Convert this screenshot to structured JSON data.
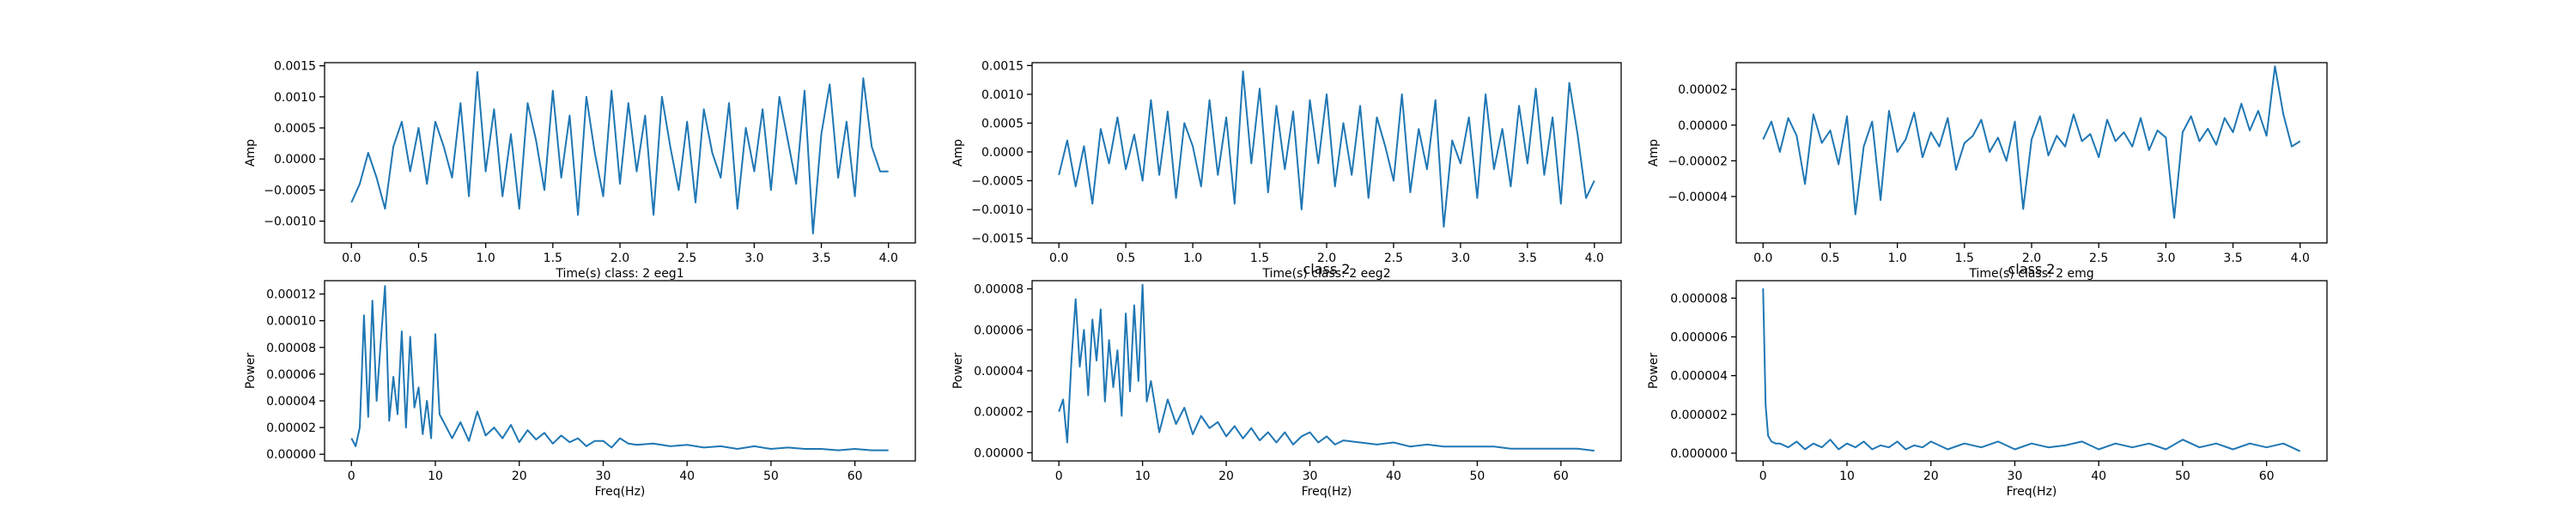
{
  "chart_data": [
    {
      "type": "line",
      "title": "",
      "xlabel": "Time(s) class: 2 eeg1",
      "ylabel": "Amp",
      "xlim": [
        -0.2,
        4.2
      ],
      "ylim": [
        -0.00135,
        0.00155
      ],
      "xticks": [
        0.0,
        0.5,
        1.0,
        1.5,
        2.0,
        2.5,
        3.0,
        3.5,
        4.0
      ],
      "xtick_labels": [
        "0.0",
        "0.5",
        "1.0",
        "1.5",
        "2.0",
        "2.5",
        "3.0",
        "3.5",
        "4.0"
      ],
      "yticks": [
        -0.001,
        -0.0005,
        0.0,
        0.0005,
        0.001,
        0.0015
      ],
      "ytick_labels": [
        "−0.0010",
        "−0.0005",
        "0.0000",
        "0.0005",
        "0.0010",
        "0.0015"
      ],
      "grid": false,
      "color": "#1f77b4",
      "series": [
        {
          "x": [
            0.0,
            0.0625,
            0.125,
            0.1875,
            0.25,
            0.3125,
            0.375,
            0.4375,
            0.5,
            0.5625,
            0.625,
            0.6875,
            0.75,
            0.8125,
            0.875,
            0.9375,
            1.0,
            1.0625,
            1.125,
            1.1875,
            1.25,
            1.3125,
            1.375,
            1.4375,
            1.5,
            1.5625,
            1.625,
            1.6875,
            1.75,
            1.8125,
            1.875,
            1.9375,
            2.0,
            2.0625,
            2.125,
            2.1875,
            2.25,
            2.3125,
            2.375,
            2.4375,
            2.5,
            2.5625,
            2.625,
            2.6875,
            2.75,
            2.8125,
            2.875,
            2.9375,
            3.0,
            3.0625,
            3.125,
            3.1875,
            3.25,
            3.3125,
            3.375,
            3.4375,
            3.5,
            3.5625,
            3.625,
            3.6875,
            3.75,
            3.8125,
            3.875,
            3.9375,
            4.0
          ],
          "y": [
            -0.0007,
            -0.0004,
            0.0001,
            -0.0003,
            -0.0008,
            0.0002,
            0.0006,
            -0.0002,
            0.0005,
            -0.0004,
            0.0006,
            0.0002,
            -0.0003,
            0.0009,
            -0.0006,
            0.0014,
            -0.0002,
            0.0008,
            -0.0006,
            0.0004,
            -0.0008,
            0.0009,
            0.0003,
            -0.0005,
            0.0011,
            -0.0003,
            0.0007,
            -0.0009,
            0.001,
            0.0001,
            -0.0006,
            0.0011,
            -0.0004,
            0.0009,
            -0.0002,
            0.0007,
            -0.0009,
            0.001,
            0.0002,
            -0.0005,
            0.0006,
            -0.0007,
            0.0008,
            0.0001,
            -0.0003,
            0.0009,
            -0.0008,
            0.0005,
            -0.0002,
            0.0008,
            -0.0005,
            0.001,
            0.0003,
            -0.0004,
            0.0011,
            -0.0012,
            0.0004,
            0.0012,
            -0.0003,
            0.0006,
            -0.0006,
            0.0013,
            0.0002,
            -0.0002,
            -0.0002
          ]
        }
      ]
    },
    {
      "type": "line",
      "title": "class 2",
      "xlabel": "Time(s) class: 2 eeg2",
      "ylabel": "Amp",
      "xlim": [
        -0.2,
        4.2
      ],
      "ylim": [
        -0.00158,
        0.00155
      ],
      "xticks": [
        0.0,
        0.5,
        1.0,
        1.5,
        2.0,
        2.5,
        3.0,
        3.5,
        4.0
      ],
      "xtick_labels": [
        "0.0",
        "0.5",
        "1.0",
        "1.5",
        "2.0",
        "2.5",
        "3.0",
        "3.5",
        "4.0"
      ],
      "yticks": [
        -0.0015,
        -0.001,
        -0.0005,
        0.0,
        0.0005,
        0.001,
        0.0015
      ],
      "ytick_labels": [
        "−0.0015",
        "−0.0010",
        "−0.0005",
        "0.0000",
        "0.0005",
        "0.0010",
        "0.0015"
      ],
      "grid": false,
      "color": "#1f77b4",
      "series": [
        {
          "x": [
            0.0,
            0.0625,
            0.125,
            0.1875,
            0.25,
            0.3125,
            0.375,
            0.4375,
            0.5,
            0.5625,
            0.625,
            0.6875,
            0.75,
            0.8125,
            0.875,
            0.9375,
            1.0,
            1.0625,
            1.125,
            1.1875,
            1.25,
            1.3125,
            1.375,
            1.4375,
            1.5,
            1.5625,
            1.625,
            1.6875,
            1.75,
            1.8125,
            1.875,
            1.9375,
            2.0,
            2.0625,
            2.125,
            2.1875,
            2.25,
            2.3125,
            2.375,
            2.4375,
            2.5,
            2.5625,
            2.625,
            2.6875,
            2.75,
            2.8125,
            2.875,
            2.9375,
            3.0,
            3.0625,
            3.125,
            3.1875,
            3.25,
            3.3125,
            3.375,
            3.4375,
            3.5,
            3.5625,
            3.625,
            3.6875,
            3.75,
            3.8125,
            3.875,
            3.9375,
            4.0
          ],
          "y": [
            -0.0004,
            0.0002,
            -0.0006,
            0.0001,
            -0.0009,
            0.0004,
            -0.0002,
            0.0006,
            -0.0003,
            0.0003,
            -0.0005,
            0.0009,
            -0.0004,
            0.0007,
            -0.0008,
            0.0005,
            0.0001,
            -0.0006,
            0.0009,
            -0.0004,
            0.0006,
            -0.0009,
            0.0014,
            -0.0002,
            0.0011,
            -0.0007,
            0.0008,
            -0.0003,
            0.0007,
            -0.001,
            0.0009,
            -0.0002,
            0.001,
            -0.0006,
            0.0005,
            -0.0004,
            0.0008,
            -0.0008,
            0.0006,
            0.0001,
            -0.0005,
            0.001,
            -0.0007,
            0.0004,
            -0.0003,
            0.0009,
            -0.0013,
            0.0002,
            -0.0002,
            0.0006,
            -0.0008,
            0.001,
            -0.0003,
            0.0004,
            -0.0006,
            0.0008,
            -0.0002,
            0.0011,
            -0.0004,
            0.0006,
            -0.0009,
            0.0012,
            0.0003,
            -0.0008,
            -0.0005
          ]
        }
      ]
    },
    {
      "type": "line",
      "title": "class 2",
      "xlabel": "Time(s) class: 2 emg",
      "ylabel": "Amp",
      "xlim": [
        -0.2,
        4.2
      ],
      "ylim": [
        -6.6e-05,
        3.5e-05
      ],
      "xticks": [
        0.0,
        0.5,
        1.0,
        1.5,
        2.0,
        2.5,
        3.0,
        3.5,
        4.0
      ],
      "xtick_labels": [
        "0.0",
        "0.5",
        "1.0",
        "1.5",
        "2.0",
        "2.5",
        "3.0",
        "3.5",
        "4.0"
      ],
      "yticks": [
        -4e-05,
        -2e-05,
        0.0,
        2e-05
      ],
      "ytick_labels": [
        "−0.00004",
        "−0.00002",
        "0.00000",
        "0.00002"
      ],
      "grid": false,
      "color": "#1f77b4",
      "series": [
        {
          "x": [
            0.0,
            0.0625,
            0.125,
            0.1875,
            0.25,
            0.3125,
            0.375,
            0.4375,
            0.5,
            0.5625,
            0.625,
            0.6875,
            0.75,
            0.8125,
            0.875,
            0.9375,
            1.0,
            1.0625,
            1.125,
            1.1875,
            1.25,
            1.3125,
            1.375,
            1.4375,
            1.5,
            1.5625,
            1.625,
            1.6875,
            1.75,
            1.8125,
            1.875,
            1.9375,
            2.0,
            2.0625,
            2.125,
            2.1875,
            2.25,
            2.3125,
            2.375,
            2.4375,
            2.5,
            2.5625,
            2.625,
            2.6875,
            2.75,
            2.8125,
            2.875,
            2.9375,
            3.0,
            3.0625,
            3.125,
            3.1875,
            3.25,
            3.3125,
            3.375,
            3.4375,
            3.5,
            3.5625,
            3.625,
            3.6875,
            3.75,
            3.8125,
            3.875,
            3.9375,
            4.0
          ],
          "y": [
            -8e-06,
            2e-06,
            -1.5e-05,
            4e-06,
            -6e-06,
            -3.3e-05,
            6e-06,
            -1e-05,
            -3e-06,
            -2.2e-05,
            5e-06,
            -5e-05,
            -1.2e-05,
            2e-06,
            -4.2e-05,
            8e-06,
            -1.5e-05,
            -8e-06,
            7e-06,
            -1.8e-05,
            -4e-06,
            -1.2e-05,
            4e-06,
            -2.5e-05,
            -1e-05,
            -6e-06,
            3e-06,
            -1.5e-05,
            -7e-06,
            -2e-05,
            2e-06,
            -4.7e-05,
            -8e-06,
            5e-06,
            -1.7e-05,
            -6e-06,
            -1.2e-05,
            6e-06,
            -9e-06,
            -5e-06,
            -1.8e-05,
            3e-06,
            -9e-06,
            -4e-06,
            -1.2e-05,
            4e-06,
            -1.4e-05,
            -3e-06,
            -7e-06,
            -5.2e-05,
            -4e-06,
            5e-06,
            -9e-06,
            -2e-06,
            -1.1e-05,
            4e-06,
            -4e-06,
            1.2e-05,
            -3e-06,
            8e-06,
            -6e-06,
            3.3e-05,
            6e-06,
            -1.2e-05,
            -9e-06
          ]
        }
      ]
    },
    {
      "type": "line",
      "title": "",
      "xlabel": "Freq(Hz)",
      "ylabel": "Power",
      "xlim": [
        -3.2,
        67.2
      ],
      "ylim": [
        -5e-06,
        0.00013
      ],
      "xticks": [
        0,
        10,
        20,
        30,
        40,
        50,
        60
      ],
      "xtick_labels": [
        "0",
        "10",
        "20",
        "30",
        "40",
        "50",
        "60"
      ],
      "yticks": [
        0.0,
        2e-05,
        4e-05,
        6e-05,
        8e-05,
        0.0001,
        0.00012
      ],
      "ytick_labels": [
        "0.00000",
        "0.00002",
        "0.00004",
        "0.00006",
        "0.00008",
        "0.00010",
        "0.00012"
      ],
      "grid": false,
      "color": "#1f77b4",
      "series": [
        {
          "x": [
            0,
            0.5,
            1,
            1.5,
            2,
            2.5,
            3,
            3.5,
            4,
            4.5,
            5,
            5.5,
            6,
            6.5,
            7,
            7.5,
            8,
            8.5,
            9,
            9.5,
            10,
            10.5,
            11,
            12,
            13,
            14,
            15,
            16,
            17,
            18,
            19,
            20,
            21,
            22,
            23,
            24,
            25,
            26,
            27,
            28,
            29,
            30,
            31,
            32,
            33,
            34,
            36,
            38,
            40,
            42,
            44,
            46,
            48,
            50,
            52,
            54,
            56,
            58,
            60,
            62,
            64
          ],
          "y": [
            1.2e-05,
            6e-06,
            2e-05,
            0.000104,
            2.8e-05,
            0.000115,
            4e-05,
            8.5e-05,
            0.000126,
            2.5e-05,
            5.8e-05,
            3e-05,
            9.2e-05,
            2e-05,
            8.8e-05,
            3.5e-05,
            5e-05,
            1.5e-05,
            4e-05,
            1.2e-05,
            9e-05,
            3e-05,
            2.4e-05,
            1.2e-05,
            2.4e-05,
            1e-05,
            3.2e-05,
            1.4e-05,
            2e-05,
            1.2e-05,
            2.2e-05,
            9e-06,
            1.8e-05,
            1.1e-05,
            1.6e-05,
            8e-06,
            1.4e-05,
            9e-06,
            1.2e-05,
            6e-06,
            1e-05,
            1e-05,
            5e-06,
            1.2e-05,
            8e-06,
            7e-06,
            8e-06,
            6e-06,
            7e-06,
            5e-06,
            6e-06,
            4e-06,
            6e-06,
            4e-06,
            5e-06,
            4e-06,
            4e-06,
            3e-06,
            4e-06,
            3e-06,
            3e-06
          ]
        }
      ]
    },
    {
      "type": "line",
      "title": "",
      "xlabel": "Freq(Hz)",
      "ylabel": "Power",
      "xlim": [
        -3.2,
        67.2
      ],
      "ylim": [
        -4e-06,
        8.4e-05
      ],
      "xticks": [
        0,
        10,
        20,
        30,
        40,
        50,
        60
      ],
      "xtick_labels": [
        "0",
        "10",
        "20",
        "30",
        "40",
        "50",
        "60"
      ],
      "yticks": [
        0.0,
        2e-05,
        4e-05,
        6e-05,
        8e-05
      ],
      "ytick_labels": [
        "0.00000",
        "0.00002",
        "0.00004",
        "0.00006",
        "0.00008"
      ],
      "grid": false,
      "color": "#1f77b4",
      "series": [
        {
          "x": [
            0,
            0.5,
            1,
            1.5,
            2,
            2.5,
            3,
            3.5,
            4,
            4.5,
            5,
            5.5,
            6,
            6.5,
            7,
            7.5,
            8,
            8.5,
            9,
            9.5,
            10,
            10.5,
            11,
            12,
            13,
            14,
            15,
            16,
            17,
            18,
            19,
            20,
            21,
            22,
            23,
            24,
            25,
            26,
            27,
            28,
            29,
            30,
            31,
            32,
            33,
            34,
            36,
            38,
            40,
            42,
            44,
            46,
            48,
            50,
            52,
            54,
            56,
            58,
            60,
            62,
            64
          ],
          "y": [
            2e-05,
            2.6e-05,
            5e-06,
            4.5e-05,
            7.5e-05,
            4.2e-05,
            6e-05,
            2.8e-05,
            6.5e-05,
            4.5e-05,
            7e-05,
            2.5e-05,
            5.5e-05,
            3.2e-05,
            5e-05,
            1.8e-05,
            6.8e-05,
            3e-05,
            7.2e-05,
            3.5e-05,
            8.2e-05,
            2.5e-05,
            3.5e-05,
            1e-05,
            2.6e-05,
            1.4e-05,
            2.2e-05,
            9e-06,
            1.8e-05,
            1.2e-05,
            1.5e-05,
            8e-06,
            1.3e-05,
            7e-06,
            1.2e-05,
            6e-06,
            1e-05,
            5e-06,
            1e-05,
            4e-06,
            8e-06,
            1e-05,
            5e-06,
            8e-06,
            4e-06,
            6e-06,
            5e-06,
            4e-06,
            5e-06,
            3e-06,
            4e-06,
            3e-06,
            3e-06,
            3e-06,
            3e-06,
            2e-06,
            2e-06,
            2e-06,
            2e-06,
            2e-06,
            1e-06
          ]
        }
      ]
    },
    {
      "type": "line",
      "title": "",
      "xlabel": "Freq(Hz)",
      "ylabel": "Power",
      "xlim": [
        -3.2,
        67.2
      ],
      "ylim": [
        -4e-07,
        8.9e-06
      ],
      "xticks": [
        0,
        10,
        20,
        30,
        40,
        50,
        60
      ],
      "xtick_labels": [
        "0",
        "10",
        "20",
        "30",
        "40",
        "50",
        "60"
      ],
      "yticks": [
        0.0,
        2e-06,
        4e-06,
        6e-06,
        8e-06
      ],
      "ytick_labels": [
        "0.000000",
        "0.000002",
        "0.000004",
        "0.000006",
        "0.000008"
      ],
      "grid": false,
      "color": "#1f77b4",
      "series": [
        {
          "x": [
            0,
            0.3,
            0.6,
            1,
            1.5,
            2,
            3,
            4,
            5,
            6,
            7,
            8,
            9,
            10,
            11,
            12,
            13,
            14,
            15,
            16,
            17,
            18,
            19,
            20,
            22,
            24,
            26,
            28,
            30,
            32,
            34,
            36,
            38,
            40,
            42,
            44,
            46,
            48,
            50,
            52,
            54,
            56,
            58,
            60,
            62,
            63,
            64
          ],
          "y": [
            8.5e-06,
            2.5e-06,
            9e-07,
            6e-07,
            5e-07,
            5e-07,
            3e-07,
            6e-07,
            2e-07,
            5e-07,
            3e-07,
            7e-07,
            2e-07,
            5e-07,
            3e-07,
            6e-07,
            2e-07,
            4e-07,
            3e-07,
            6e-07,
            2e-07,
            4e-07,
            3e-07,
            6e-07,
            2e-07,
            5e-07,
            3e-07,
            6e-07,
            2e-07,
            5e-07,
            3e-07,
            4e-07,
            6e-07,
            2e-07,
            5e-07,
            3e-07,
            5e-07,
            2e-07,
            7e-07,
            3e-07,
            5e-07,
            2e-07,
            5e-07,
            3e-07,
            5e-07,
            3e-07,
            1e-07
          ]
        }
      ]
    }
  ]
}
